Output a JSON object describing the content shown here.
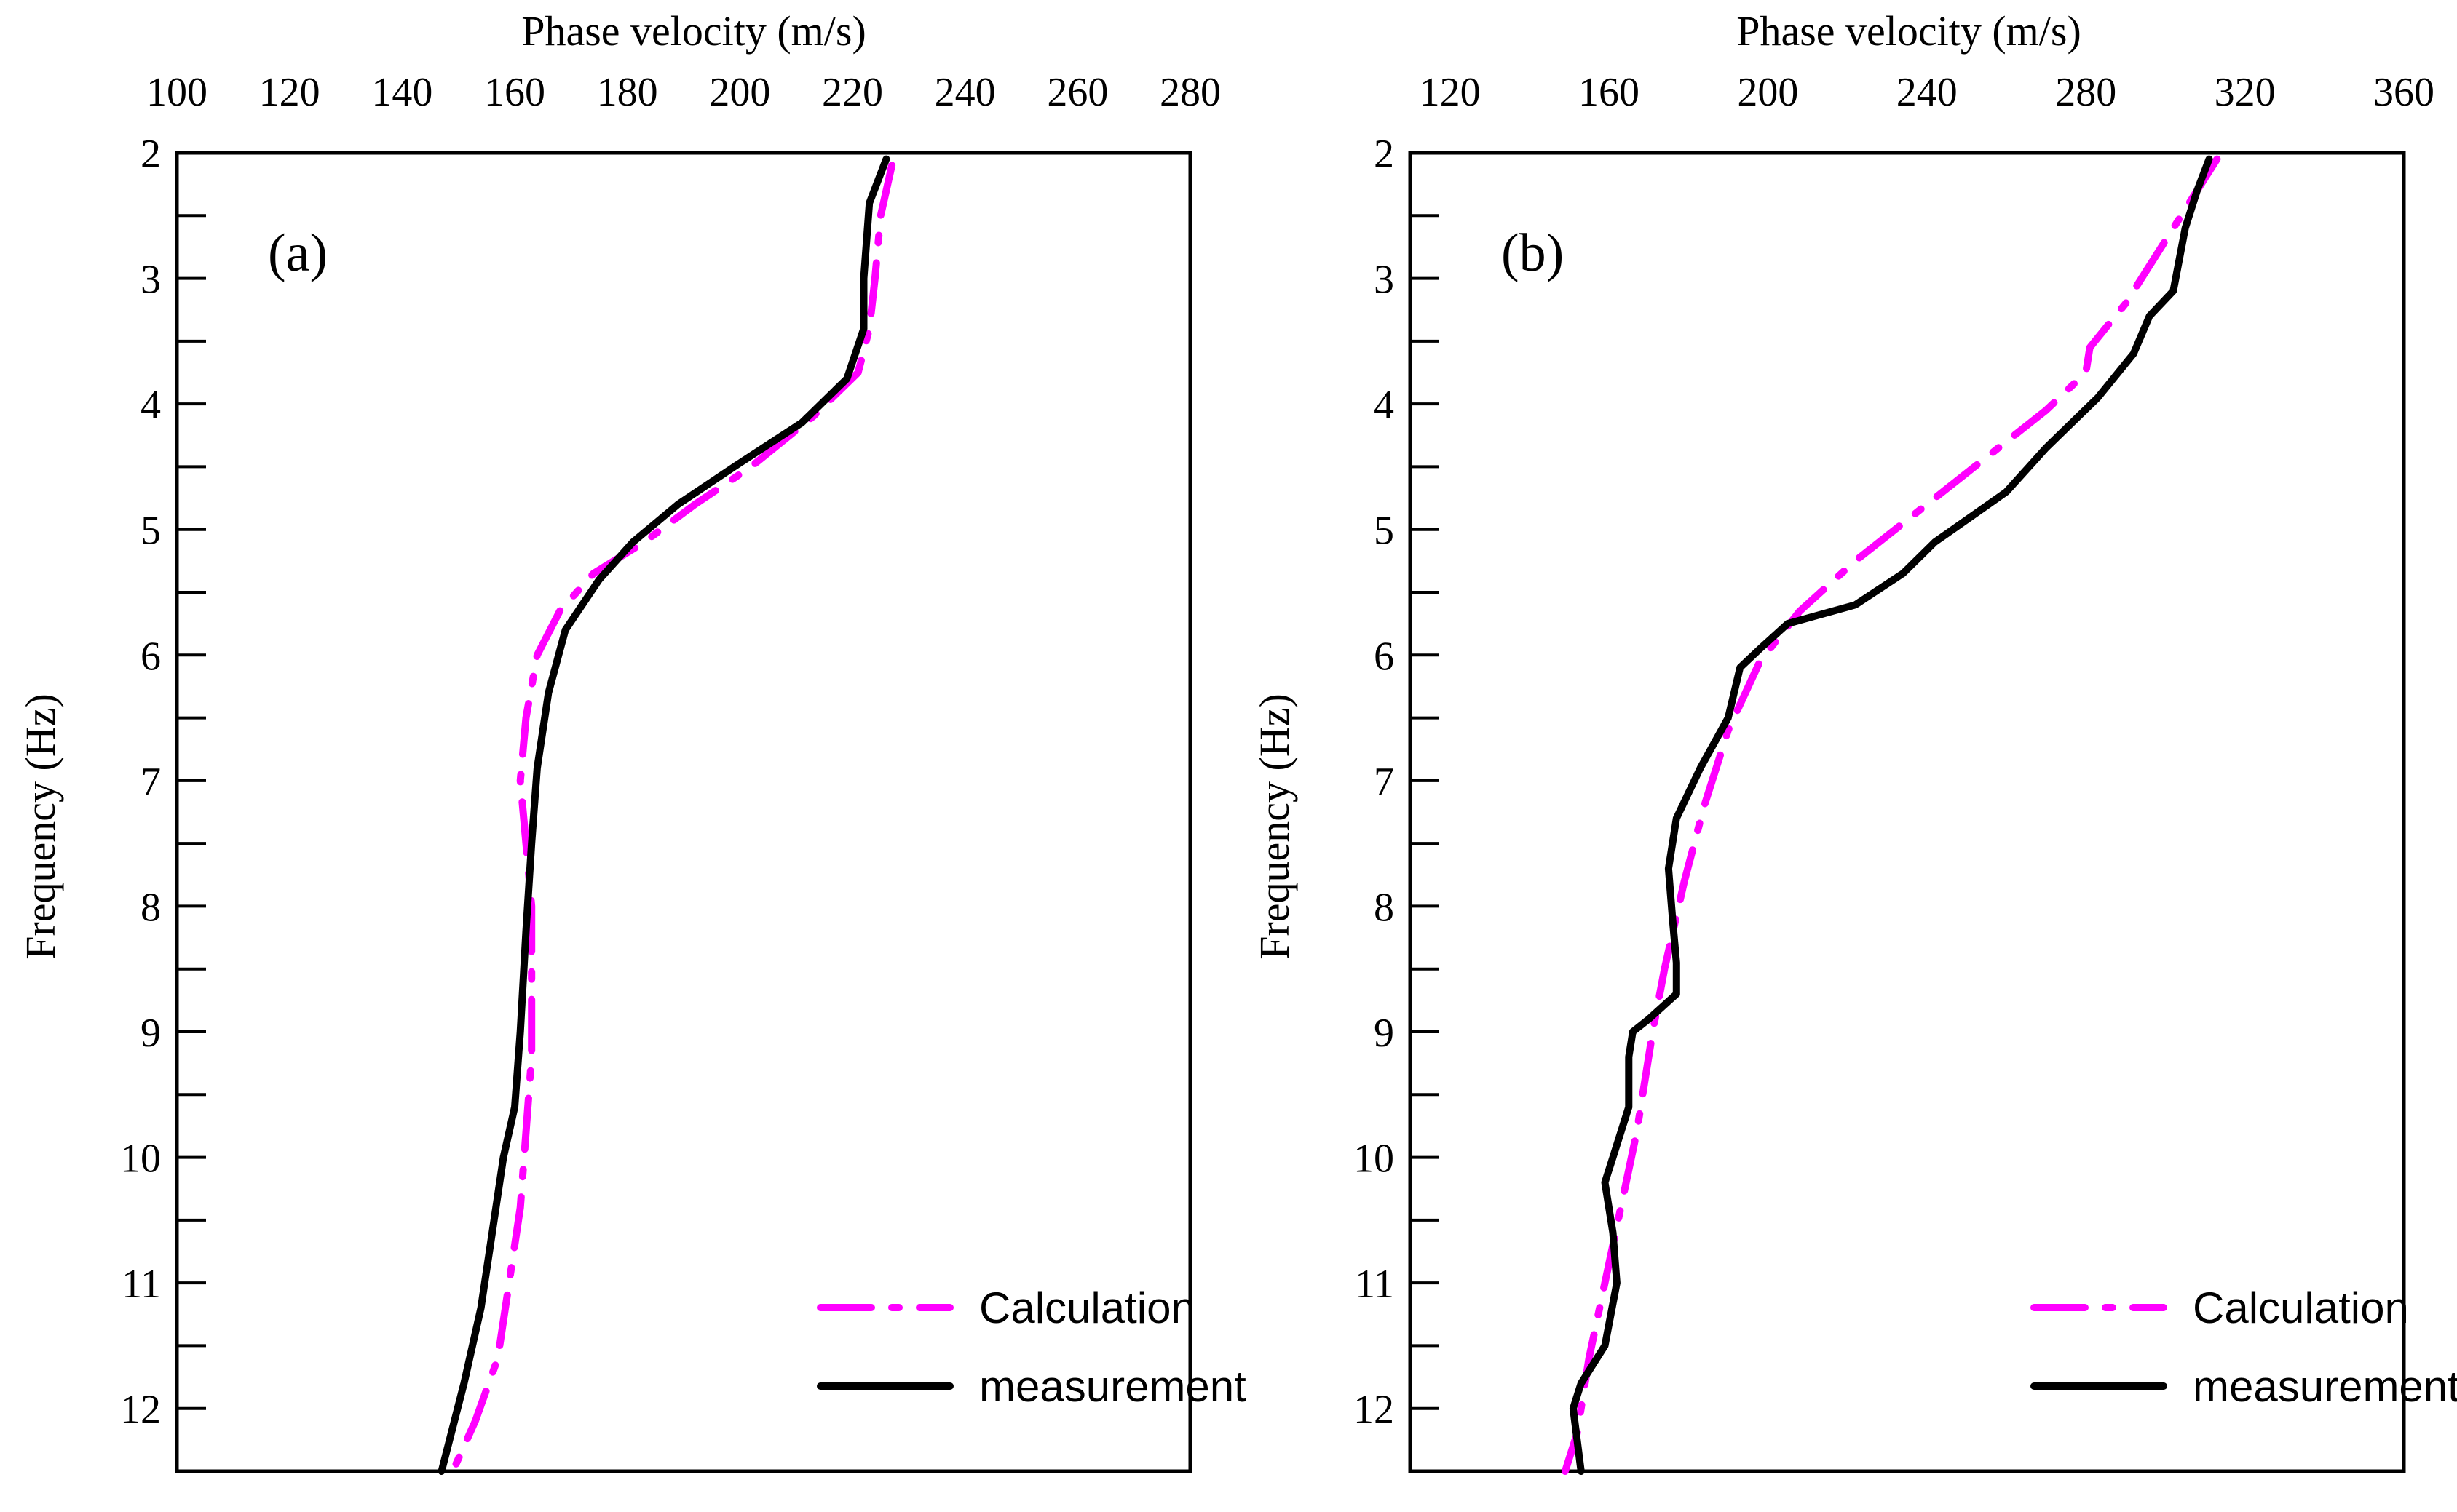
{
  "chart_data": [
    {
      "type": "line",
      "panel_label": "(a)",
      "xlabel": "Phase velocity  (m/s)",
      "ylabel": "Frequency (Hz)",
      "xlim": [
        100,
        280
      ],
      "ylim": [
        2,
        12.5
      ],
      "x_ticks": [
        100,
        120,
        140,
        160,
        180,
        200,
        220,
        240,
        260,
        280
      ],
      "y_ticks": [
        2,
        3,
        4,
        5,
        6,
        7,
        8,
        9,
        10,
        11,
        12
      ],
      "y_minor_ticks": [
        2.5,
        3.5,
        4.5,
        5.5,
        6.5,
        7.5,
        8.5,
        9.5,
        10.5,
        11.5
      ],
      "legend": {
        "position": "bottom-right",
        "entries": [
          "Calculation",
          "measurement"
        ]
      },
      "series": [
        {
          "name": "Calculation",
          "style": "dash-dot",
          "color": "#ff00ff",
          "points": [
            [
              227,
              2.1
            ],
            [
              225,
              2.5
            ],
            [
              224,
              3.0
            ],
            [
              223,
              3.4
            ],
            [
              221,
              3.75
            ],
            [
              213,
              4.1
            ],
            [
              202,
              4.5
            ],
            [
              192,
              4.8
            ],
            [
              183,
              5.1
            ],
            [
              174,
              5.35
            ],
            [
              168,
              5.65
            ],
            [
              164,
              6.0
            ],
            [
              162,
              6.5
            ],
            [
              161,
              7.0
            ],
            [
              162,
              7.5
            ],
            [
              163,
              8.0
            ],
            [
              163,
              8.6
            ],
            [
              163,
              9.2
            ],
            [
              162,
              9.8
            ],
            [
              161,
              10.4
            ],
            [
              159,
              11.0
            ],
            [
              157,
              11.6
            ],
            [
              153,
              12.1
            ],
            [
              149,
              12.5
            ]
          ]
        },
        {
          "name": "measurement",
          "style": "solid",
          "color": "#000000",
          "points": [
            [
              226,
              2.05
            ],
            [
              223,
              2.4
            ],
            [
              222,
              3.0
            ],
            [
              222,
              3.4
            ],
            [
              219,
              3.8
            ],
            [
              211,
              4.15
            ],
            [
              199,
              4.5
            ],
            [
              189,
              4.8
            ],
            [
              181,
              5.1
            ],
            [
              175,
              5.4
            ],
            [
              169,
              5.8
            ],
            [
              166,
              6.3
            ],
            [
              164,
              6.9
            ],
            [
              163,
              7.5
            ],
            [
              162,
              8.2
            ],
            [
              161,
              9.0
            ],
            [
              160,
              9.6
            ],
            [
              158,
              10.0
            ],
            [
              156,
              10.6
            ],
            [
              154,
              11.2
            ],
            [
              151,
              11.8
            ],
            [
              147,
              12.5
            ]
          ]
        }
      ]
    },
    {
      "type": "line",
      "panel_label": "(b)",
      "xlabel": "Phase velocity  (m/s)",
      "ylabel": "Frequency (Hz)",
      "xlim": [
        110,
        360
      ],
      "ylim": [
        2,
        12.5
      ],
      "x_ticks": [
        120,
        160,
        200,
        240,
        280,
        320,
        360
      ],
      "y_ticks": [
        2,
        3,
        4,
        5,
        6,
        7,
        8,
        9,
        10,
        11,
        12
      ],
      "y_minor_ticks": [
        2.5,
        3.5,
        4.5,
        5.5,
        6.5,
        7.5,
        8.5,
        9.5,
        10.5,
        11.5
      ],
      "legend": {
        "position": "bottom-right",
        "entries": [
          "Calculation",
          "measurement"
        ]
      },
      "series": [
        {
          "name": "Calculation",
          "style": "dash-dot",
          "color": "#ff00ff",
          "points": [
            [
              313,
              2.05
            ],
            [
              300,
              2.7
            ],
            [
              290,
              3.2
            ],
            [
              281,
              3.55
            ],
            [
              280,
              3.75
            ],
            [
              270,
              4.05
            ],
            [
              256,
              4.4
            ],
            [
              240,
              4.8
            ],
            [
              222,
              5.25
            ],
            [
              208,
              5.65
            ],
            [
              198,
              6.05
            ],
            [
              190,
              6.6
            ],
            [
              184,
              7.2
            ],
            [
              179,
              7.8
            ],
            [
              174,
              8.5
            ],
            [
              171,
              9.0
            ],
            [
              167,
              9.8
            ],
            [
              163,
              10.4
            ],
            [
              159,
              11.0
            ],
            [
              155,
              11.6
            ],
            [
              152,
              12.2
            ],
            [
              149,
              12.5
            ]
          ]
        },
        {
          "name": "measurement",
          "style": "solid",
          "color": "#000000",
          "points": [
            [
              311,
              2.05
            ],
            [
              308,
              2.3
            ],
            [
              305,
              2.6
            ],
            [
              302,
              3.1
            ],
            [
              296,
              3.3
            ],
            [
              292,
              3.6
            ],
            [
              283,
              3.95
            ],
            [
              270,
              4.35
            ],
            [
              260,
              4.7
            ],
            [
              251,
              4.9
            ],
            [
              242,
              5.1
            ],
            [
              234,
              5.35
            ],
            [
              222,
              5.6
            ],
            [
              205,
              5.75
            ],
            [
              198,
              5.95
            ],
            [
              193,
              6.1
            ],
            [
              190,
              6.5
            ],
            [
              183,
              6.9
            ],
            [
              177,
              7.3
            ],
            [
              175,
              7.7
            ],
            [
              176,
              8.1
            ],
            [
              177,
              8.45
            ],
            [
              177,
              8.7
            ],
            [
              170,
              8.9
            ],
            [
              166,
              9.0
            ],
            [
              165,
              9.2
            ],
            [
              165,
              9.6
            ],
            [
              161,
              10.0
            ],
            [
              159,
              10.2
            ],
            [
              161,
              10.6
            ],
            [
              162,
              11.0
            ],
            [
              159,
              11.5
            ],
            [
              153,
              11.8
            ],
            [
              151,
              12.0
            ],
            [
              153,
              12.5
            ]
          ]
        }
      ]
    }
  ]
}
